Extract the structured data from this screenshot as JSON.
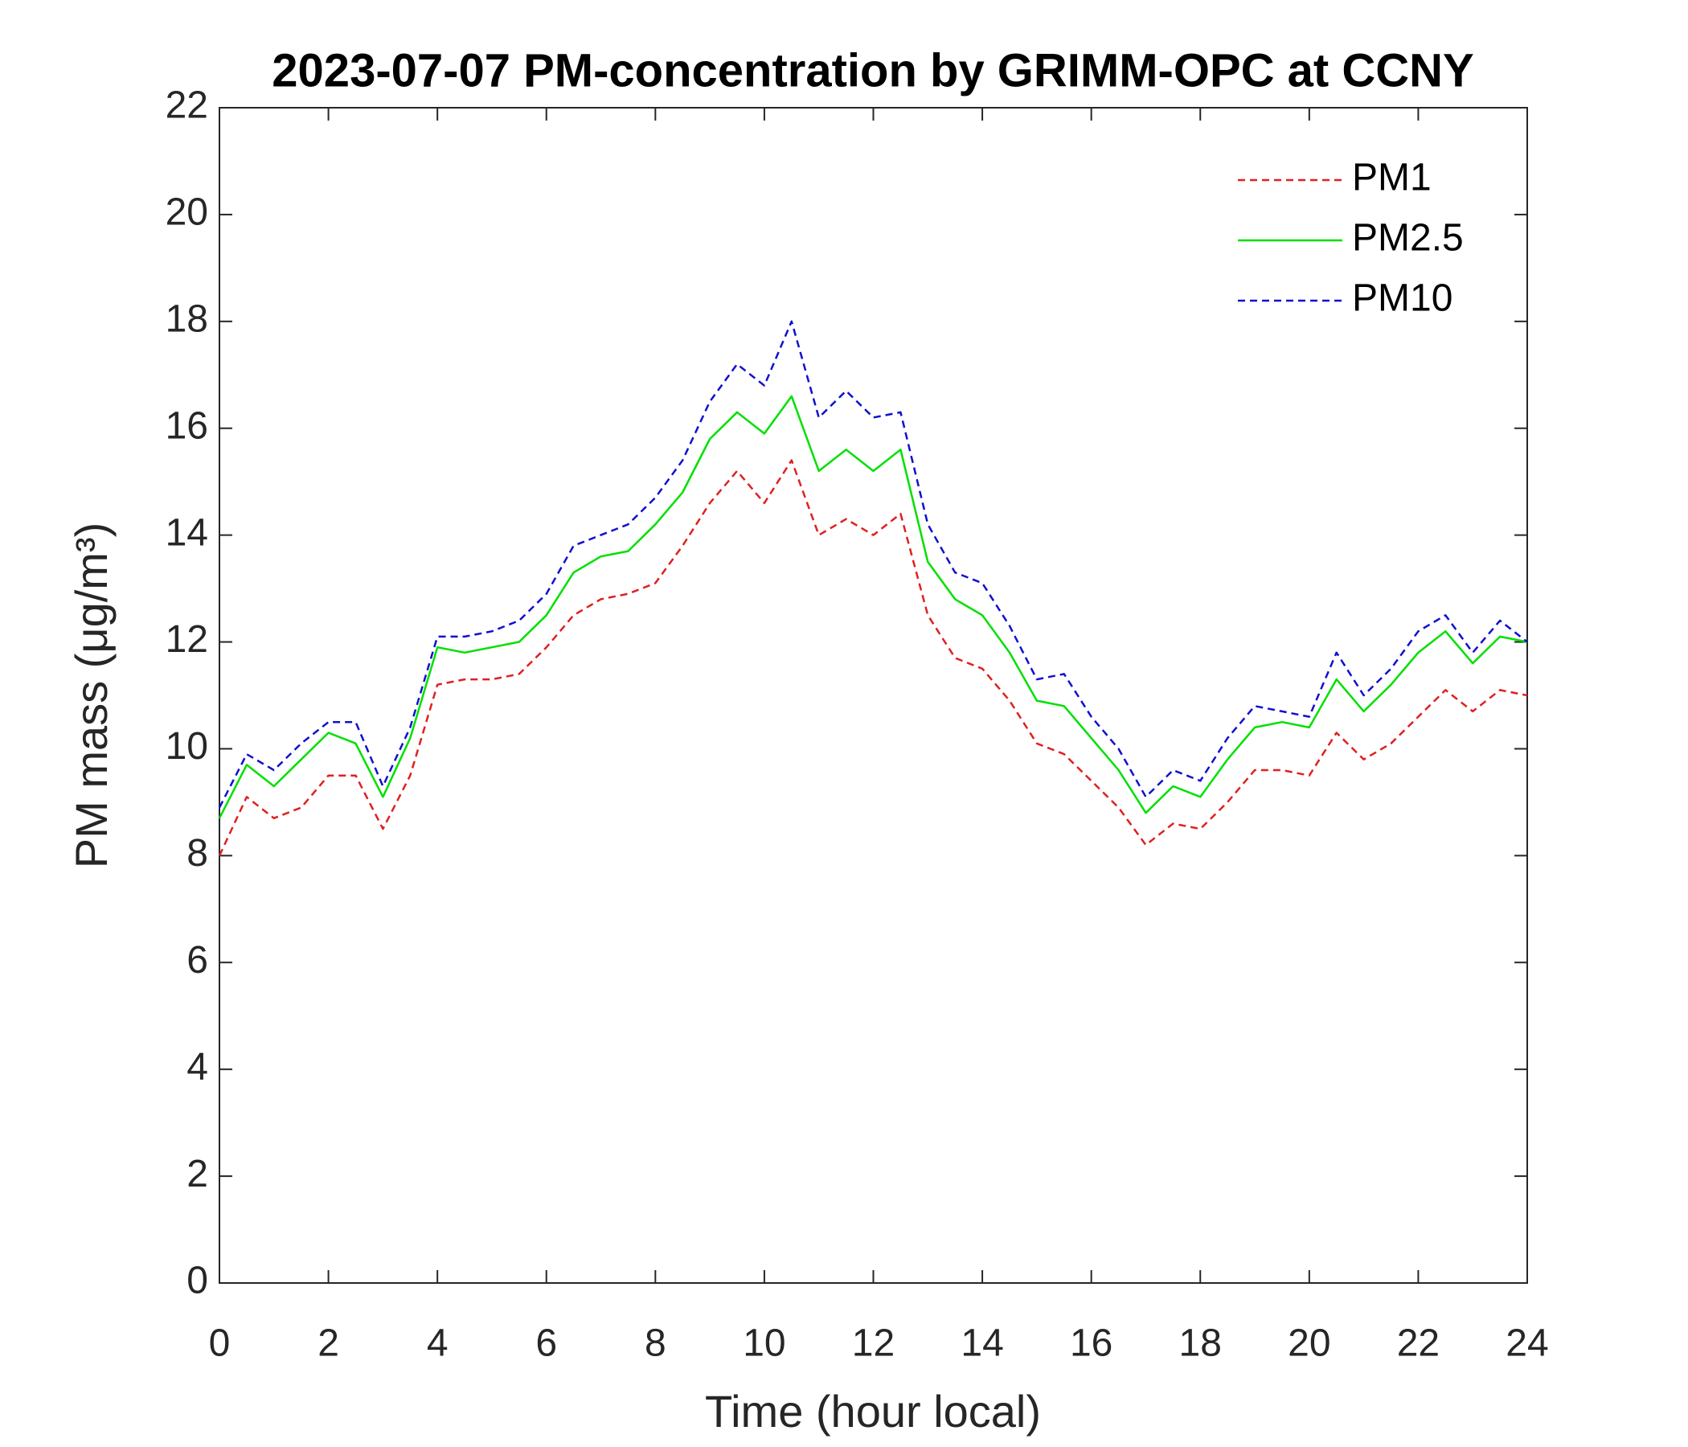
{
  "chart_data": {
    "type": "line",
    "title": "2023-07-07 PM-concentration by GRIMM-OPC at CCNY",
    "xlabel": "Time (hour local)",
    "ylabel": "PM mass (μg/m³)",
    "x": [
      0,
      0.5,
      1,
      1.5,
      2,
      2.5,
      3,
      3.5,
      4,
      4.5,
      5,
      5.5,
      6,
      6.5,
      7,
      7.5,
      8,
      8.5,
      9,
      9.5,
      10,
      10.5,
      11,
      11.5,
      12,
      12.5,
      13,
      13.5,
      14,
      14.5,
      15,
      15.5,
      16,
      16.5,
      17,
      17.5,
      18,
      18.5,
      19,
      19.5,
      20,
      20.5,
      21,
      21.5,
      22,
      22.5,
      23,
      23.5,
      24
    ],
    "series": [
      {
        "name": "PM1",
        "color": "#e02020",
        "dashed": true,
        "values": [
          8.0,
          9.1,
          8.7,
          8.9,
          9.5,
          9.5,
          8.5,
          9.5,
          11.2,
          11.3,
          11.3,
          11.4,
          11.9,
          12.5,
          12.8,
          12.9,
          13.1,
          13.8,
          14.6,
          15.2,
          14.6,
          15.4,
          14.0,
          14.3,
          14.0,
          14.4,
          12.5,
          11.7,
          11.5,
          10.9,
          10.1,
          9.9,
          9.4,
          8.9,
          8.2,
          8.6,
          8.5,
          9.0,
          9.6,
          9.6,
          9.5,
          10.3,
          9.8,
          10.1,
          10.6,
          11.1,
          10.7,
          11.1,
          11.0
        ]
      },
      {
        "name": "PM2.5",
        "color": "#00e000",
        "dashed": false,
        "values": [
          8.7,
          9.7,
          9.3,
          9.8,
          10.3,
          10.1,
          9.1,
          10.2,
          11.9,
          11.8,
          11.9,
          12.0,
          12.5,
          13.3,
          13.6,
          13.7,
          14.2,
          14.8,
          15.8,
          16.3,
          15.9,
          16.6,
          15.2,
          15.6,
          15.2,
          15.6,
          13.5,
          12.8,
          12.5,
          11.8,
          10.9,
          10.8,
          10.2,
          9.6,
          8.8,
          9.3,
          9.1,
          9.8,
          10.4,
          10.5,
          10.4,
          11.3,
          10.7,
          11.2,
          11.8,
          12.2,
          11.6,
          12.1,
          12.0
        ]
      },
      {
        "name": "PM10",
        "color": "#1010d0",
        "dashed": true,
        "values": [
          8.9,
          9.9,
          9.6,
          10.1,
          10.5,
          10.5,
          9.3,
          10.4,
          12.1,
          12.1,
          12.2,
          12.4,
          12.9,
          13.8,
          14.0,
          14.2,
          14.7,
          15.4,
          16.5,
          17.2,
          16.8,
          18.0,
          16.2,
          16.7,
          16.2,
          16.3,
          14.2,
          13.3,
          13.1,
          12.3,
          11.3,
          11.4,
          10.6,
          10.0,
          9.1,
          9.6,
          9.4,
          10.2,
          10.8,
          10.7,
          10.6,
          11.8,
          11.0,
          11.5,
          12.2,
          12.5,
          11.8,
          12.4,
          12.0
        ]
      }
    ],
    "xlim": [
      0,
      24
    ],
    "xticks": [
      0,
      2,
      4,
      6,
      8,
      10,
      12,
      14,
      16,
      18,
      20,
      22,
      24
    ],
    "ylim": [
      0,
      22
    ],
    "yticks": [
      0,
      2,
      4,
      6,
      8,
      10,
      12,
      14,
      16,
      18,
      20,
      22
    ],
    "legend": "upper right",
    "grid": false
  }
}
